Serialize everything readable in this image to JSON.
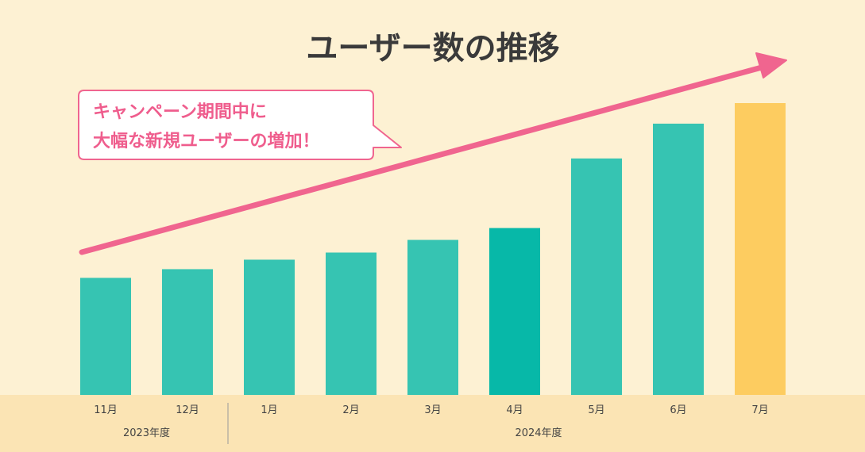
{
  "chart_data": {
    "type": "bar",
    "title": "ユーザー数の推移",
    "categories": [
      "11月",
      "12月",
      "1月",
      "2月",
      "3月",
      "4月",
      "5月",
      "6月",
      "7月"
    ],
    "values": [
      148,
      159,
      171,
      180,
      196,
      211,
      299,
      343,
      369
    ],
    "year_groups": [
      {
        "label": "2023年度",
        "from": 0,
        "to": 1
      },
      {
        "label": "2024年度",
        "from": 2,
        "to": 8
      }
    ],
    "annotation": {
      "line1": "キャンペーン期間中に",
      "line2": "大幅な新規ユーザーの増加！"
    },
    "xlabel": "",
    "ylabel": "",
    "ylim": [
      0,
      370
    ],
    "grid": false,
    "colors": {
      "background": "#fdf1d3",
      "axis_band": "#fbe4b4",
      "bar": "#36c4b2",
      "bar_emphasis": "#07b8a8",
      "bar_highlight": "#fdcc60",
      "arrow": "#f0658f",
      "title": "#3a3a3a",
      "label": "#444444",
      "annotation_text": "#ef5d8d"
    }
  }
}
